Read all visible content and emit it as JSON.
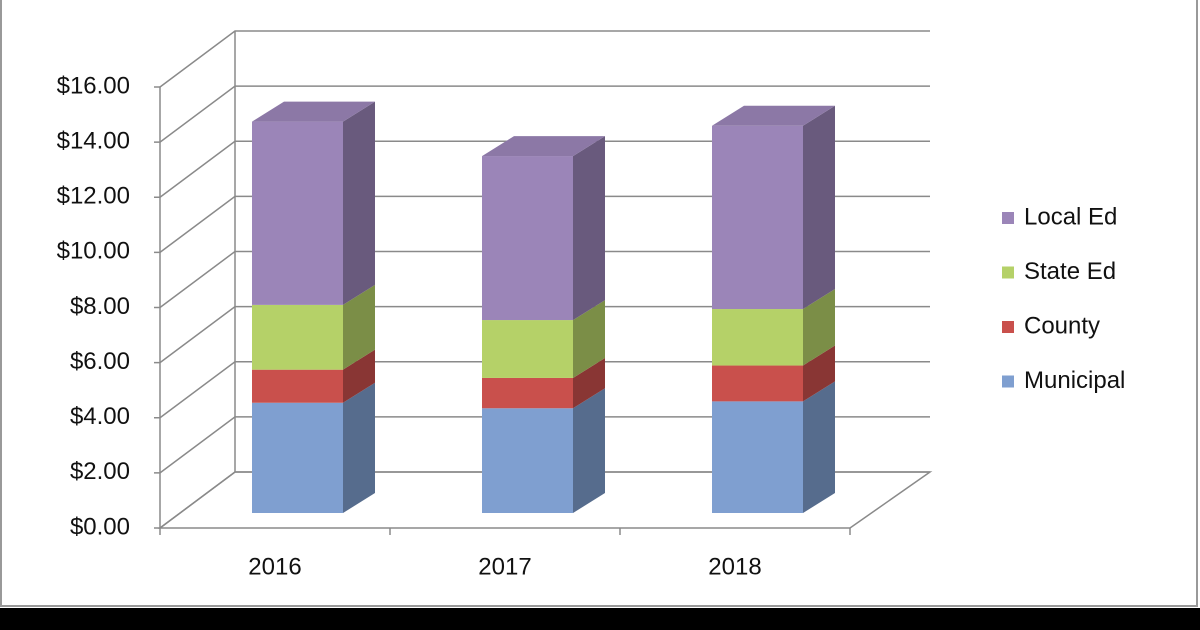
{
  "chart_data": {
    "type": "bar3d_stacked",
    "categories": [
      "2016",
      "2017",
      "2018"
    ],
    "series": [
      {
        "name": "Municipal",
        "color": "#7f9fd0",
        "values": [
          4.0,
          3.8,
          4.05
        ]
      },
      {
        "name": "County",
        "color": "#c9504c",
        "values": [
          1.2,
          1.1,
          1.3
        ]
      },
      {
        "name": "State Ed",
        "color": "#b5d168",
        "values": [
          2.35,
          2.1,
          2.05
        ]
      },
      {
        "name": "Local Ed",
        "color": "#9b85b8",
        "values": [
          6.65,
          5.95,
          6.65
        ]
      }
    ],
    "ylim": [
      0,
      16
    ],
    "yticks": [
      {
        "value": 0,
        "label": "$0.00"
      },
      {
        "value": 2,
        "label": "$2.00"
      },
      {
        "value": 4,
        "label": "$4.00"
      },
      {
        "value": 6,
        "label": "$6.00"
      },
      {
        "value": 8,
        "label": "$8.00"
      },
      {
        "value": 10,
        "label": "$10.00"
      },
      {
        "value": 12,
        "label": "$12.00"
      },
      {
        "value": 14,
        "label": "$14.00"
      },
      {
        "value": 16,
        "label": "$16.00"
      }
    ],
    "grid": true,
    "legend": "right"
  }
}
